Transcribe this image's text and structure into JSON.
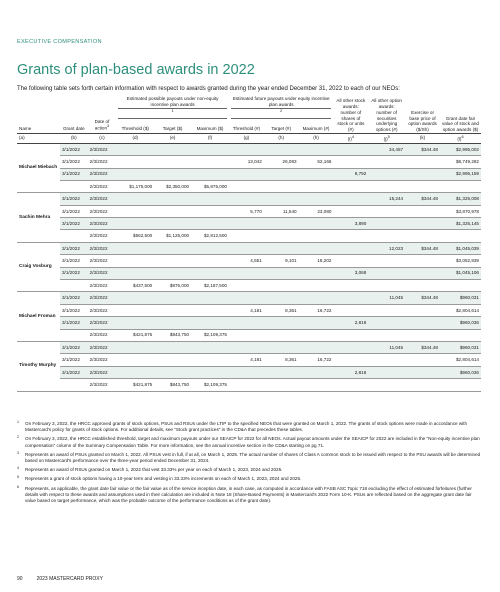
{
  "section_label": "EXECUTIVE COMPENSATION",
  "title": "Grants of plan-based awards in 2022",
  "subtitle": "The following table sets forth certain information with respect to awards granted during the year ended December 31, 2022 to each of our NEOs:",
  "table": {
    "group_headers": {
      "non_equity": "Estimated possible payouts under non-equity incentive plan awards",
      "non_equity_mark": "1",
      "equity": "Estimated future payouts under equity incentive plan awards",
      "equity_mark": "2"
    },
    "headers": {
      "name": "Name",
      "grant_date": "Grant date",
      "date_of_action": "Date of action",
      "date_of_action_mark": "3",
      "threshold_usd": "Threshold ($)",
      "target_usd": "Target ($)",
      "maximum_usd": "Maximum ($)",
      "threshold_num": "Threshold (#)",
      "target_num": "Target (#)",
      "maximum_num": "Maximum (#)",
      "other_stock": "All other stock awards: number of shares of stock or units (#)",
      "other_option": "All other option awards: number of securities underlying options (#)",
      "exercise": "Exercise or base price of option awards ($/Sh)",
      "fair_value": "Grant date fair value of stock and option awards ($)"
    },
    "letters": {
      "a": "(a)",
      "b": "(b)",
      "c": "(c)",
      "d": "(d)",
      "e": "(e)",
      "f": "(f)",
      "g": "(g)",
      "h": "(h)",
      "i": "(i)",
      "i_mark": "4",
      "j": "(j)",
      "j_mark": "5",
      "k": "(k)",
      "l": "(l)",
      "l_mark": "6"
    },
    "people": [
      {
        "name": "Michael Miebach",
        "rows": [
          {
            "grant_date": "3/1/2022",
            "action_date": "2/3/2022",
            "thr_usd": "",
            "tgt_usd": "",
            "max_usd": "",
            "thr_num": "",
            "tgt_num": "",
            "max_num": "",
            "stock": "",
            "options": "34,457",
            "exercise": "$344.48",
            "fair": "$2,995,002"
          },
          {
            "grant_date": "3/1/2022",
            "action_date": "2/3/2022",
            "thr_usd": "",
            "tgt_usd": "",
            "max_usd": "",
            "thr_num": "13,042",
            "tgt_num": "26,083",
            "max_num": "52,166",
            "stock": "",
            "options": "",
            "exercise": "",
            "fair": "$8,749,282"
          },
          {
            "grant_date": "3/1/2022",
            "action_date": "2/3/2022",
            "thr_usd": "",
            "tgt_usd": "",
            "max_usd": "",
            "thr_num": "",
            "tgt_num": "",
            "max_num": "",
            "stock": "8,792",
            "options": "",
            "exercise": "",
            "fair": "$2,995,159"
          },
          {
            "grant_date": "",
            "action_date": "2/3/2022",
            "thr_usd": "$1,175,000",
            "tgt_usd": "$2,350,000",
            "max_usd": "$5,875,000",
            "thr_num": "",
            "tgt_num": "",
            "max_num": "",
            "stock": "",
            "options": "",
            "exercise": "",
            "fair": ""
          }
        ]
      },
      {
        "name": "Sachin Mehra",
        "rows": [
          {
            "grant_date": "3/1/2022",
            "action_date": "2/3/2022",
            "thr_usd": "",
            "tgt_usd": "",
            "max_usd": "",
            "thr_num": "",
            "tgt_num": "",
            "max_num": "",
            "stock": "",
            "options": "15,244",
            "exercise": "$344.48",
            "fair": "$1,325,008"
          },
          {
            "grant_date": "3/1/2022",
            "action_date": "2/3/2022",
            "thr_usd": "",
            "tgt_usd": "",
            "max_usd": "",
            "thr_num": "5,770",
            "tgt_num": "11,540",
            "max_num": "23,080",
            "stock": "",
            "options": "",
            "exercise": "",
            "fair": "$3,870,978"
          },
          {
            "grant_date": "3/1/2022",
            "action_date": "2/3/2022",
            "thr_usd": "",
            "tgt_usd": "",
            "max_usd": "",
            "thr_num": "",
            "tgt_num": "",
            "max_num": "",
            "stock": "3,890",
            "options": "",
            "exercise": "",
            "fair": "$1,325,145"
          },
          {
            "grant_date": "",
            "action_date": "2/3/2022",
            "thr_usd": "$562,500",
            "tgt_usd": "$1,125,000",
            "max_usd": "$2,812,500",
            "thr_num": "",
            "tgt_num": "",
            "max_num": "",
            "stock": "",
            "options": "",
            "exercise": "",
            "fair": ""
          }
        ]
      },
      {
        "name": "Craig Vosburg",
        "rows": [
          {
            "grant_date": "3/1/2022",
            "action_date": "2/3/2022",
            "thr_usd": "",
            "tgt_usd": "",
            "max_usd": "",
            "thr_num": "",
            "tgt_num": "",
            "max_num": "",
            "stock": "",
            "options": "12,023",
            "exercise": "$344.48",
            "fair": "$1,045,039"
          },
          {
            "grant_date": "3/1/2022",
            "action_date": "2/3/2022",
            "thr_usd": "",
            "tgt_usd": "",
            "max_usd": "",
            "thr_num": "4,551",
            "tgt_num": "9,101",
            "max_num": "18,202",
            "stock": "",
            "options": "",
            "exercise": "",
            "fair": "$3,052,839"
          },
          {
            "grant_date": "3/1/2022",
            "action_date": "2/3/2022",
            "thr_usd": "",
            "tgt_usd": "",
            "max_usd": "",
            "thr_num": "",
            "tgt_num": "",
            "max_num": "",
            "stock": "3,068",
            "options": "",
            "exercise": "",
            "fair": "$1,045,106"
          },
          {
            "grant_date": "",
            "action_date": "2/3/2022",
            "thr_usd": "$437,500",
            "tgt_usd": "$875,000",
            "max_usd": "$2,187,500",
            "thr_num": "",
            "tgt_num": "",
            "max_num": "",
            "stock": "",
            "options": "",
            "exercise": "",
            "fair": ""
          }
        ]
      },
      {
        "name": "Michael Froman",
        "rows": [
          {
            "grant_date": "3/1/2022",
            "action_date": "2/3/2022",
            "thr_usd": "",
            "tgt_usd": "",
            "max_usd": "",
            "thr_num": "",
            "tgt_num": "",
            "max_num": "",
            "stock": "",
            "options": "11,045",
            "exercise": "$344.48",
            "fair": "$960,031"
          },
          {
            "grant_date": "3/1/2022",
            "action_date": "2/3/2022",
            "thr_usd": "",
            "tgt_usd": "",
            "max_usd": "",
            "thr_num": "4,181",
            "tgt_num": "8,361",
            "max_num": "16,722",
            "stock": "",
            "options": "",
            "exercise": "",
            "fair": "$2,804,614"
          },
          {
            "grant_date": "3/1/2022",
            "action_date": "2/3/2022",
            "thr_usd": "",
            "tgt_usd": "",
            "max_usd": "",
            "thr_num": "",
            "tgt_num": "",
            "max_num": "",
            "stock": "2,818",
            "options": "",
            "exercise": "",
            "fair": "$960,036"
          },
          {
            "grant_date": "",
            "action_date": "2/3/2022",
            "thr_usd": "$421,875",
            "tgt_usd": "$843,750",
            "max_usd": "$2,109,375",
            "thr_num": "",
            "tgt_num": "",
            "max_num": "",
            "stock": "",
            "options": "",
            "exercise": "",
            "fair": ""
          }
        ]
      },
      {
        "name": "Timothy Murphy",
        "rows": [
          {
            "grant_date": "3/1/2022",
            "action_date": "2/3/2022",
            "thr_usd": "",
            "tgt_usd": "",
            "max_usd": "",
            "thr_num": "",
            "tgt_num": "",
            "max_num": "",
            "stock": "",
            "options": "11,045",
            "exercise": "$344.48",
            "fair": "$960,031"
          },
          {
            "grant_date": "3/1/2022",
            "action_date": "2/3/2022",
            "thr_usd": "",
            "tgt_usd": "",
            "max_usd": "",
            "thr_num": "4,181",
            "tgt_num": "8,361",
            "max_num": "16,722",
            "stock": "",
            "options": "",
            "exercise": "",
            "fair": "$2,804,614"
          },
          {
            "grant_date": "3/1/2022",
            "action_date": "2/3/2022",
            "thr_usd": "",
            "tgt_usd": "",
            "max_usd": "",
            "thr_num": "",
            "tgt_num": "",
            "max_num": "",
            "stock": "2,818",
            "options": "",
            "exercise": "",
            "fair": "$960,036"
          },
          {
            "grant_date": "",
            "action_date": "2/3/2022",
            "thr_usd": "$421,875",
            "tgt_usd": "$843,750",
            "max_usd": "$2,109,375",
            "thr_num": "",
            "tgt_num": "",
            "max_num": "",
            "stock": "",
            "options": "",
            "exercise": "",
            "fair": ""
          }
        ]
      }
    ]
  },
  "footnotes": [
    {
      "mark": "1",
      "text": "On February 3, 2022, the HRCC approved grants of stock options, PSUs and RSUs under the LTIP to the specified NEOs that were granted on March 1, 2022. The grants of stock options were made in accordance with Mastercard's policy for grants of stock options. For additional details, see \"Stock grant practices\" in the CD&A that precedes these tables."
    },
    {
      "mark": "2",
      "text": "On February 3, 2022, the HRCC established threshold, target and maximum payouts under our SEAICP for 2022 for all NEOs. Actual payout amounts under the SEAICP for 2022 are included in the \"Non-equity incentive plan compensation\" column of the Summary Compensation Table. For more information, see the annual incentive section in the CD&A starting on pg 71."
    },
    {
      "mark": "3",
      "text": "Represents an award of PSUs granted on March 1, 2022. All PSUs vest in full, if at all, on March 1, 2025. The actual number of shares of Class A common stock to be issued with respect to the PSU awards will be determined based on Mastercard's performance over the three-year period ended December 31, 2024."
    },
    {
      "mark": "4",
      "text": "Represents an award of RSUs granted on March 1, 2022 that vest 33.33% per year on each of March 1, 2023, 2024 and 2025."
    },
    {
      "mark": "5",
      "text": "Represents a grant of stock options having a 10-year term and vesting in 33.33% increments on each of March 1, 2023, 2024 and 2025."
    },
    {
      "mark": "6",
      "text": "Represents, as applicable, the grant date fair value or the fair value as of the service inception date, in each case, as computed in accordance with FASB ASC Topic 718 excluding the effect of estimated forfeitures (further details with respect to these awards and assumptions used in their calculation are included in Note 18 (Share-Based Payments) in Mastercard's 2022 Form 10-K. PSUs are reflected based on the aggregate grant date fair value based on target performance, which was the probable outcome of the performance conditions as of the grant date)."
    }
  ],
  "footer": {
    "page": "90",
    "doc": "2023 MASTERCARD PROXY"
  }
}
